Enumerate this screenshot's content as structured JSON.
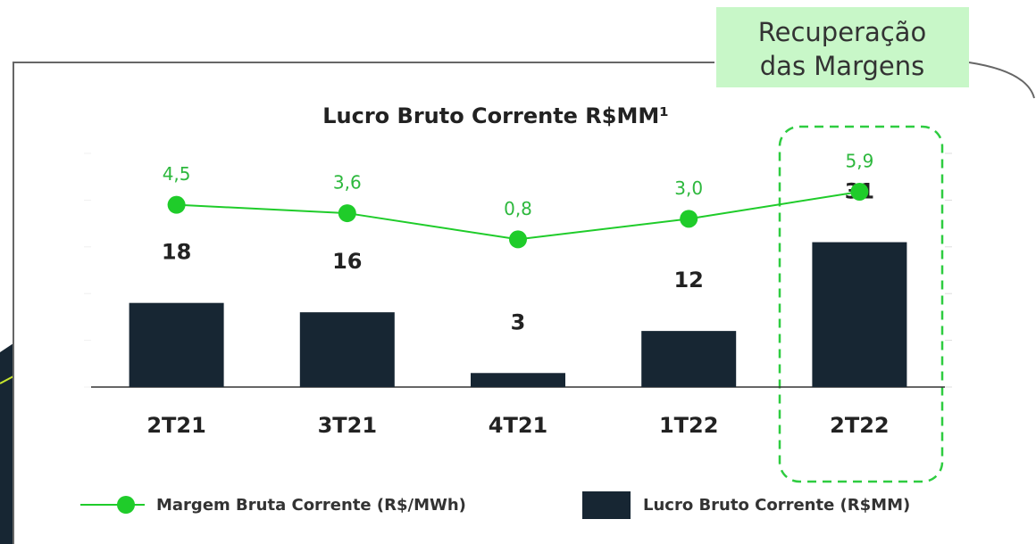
{
  "chart_data": {
    "type": "bar",
    "title": "Lucro Bruto Corrente R$MM¹",
    "annotation": [
      "Recuperação",
      "das Margens"
    ],
    "categories": [
      "2T21",
      "3T21",
      "4T21",
      "1T22",
      "2T22"
    ],
    "series": [
      {
        "name": "Lucro Bruto Corrente (R$MM)",
        "type": "bar",
        "color": "#172633",
        "values": [
          18,
          16,
          3,
          12,
          31
        ]
      },
      {
        "name": "Margem Bruta Corrente (R$/MWh)",
        "type": "line",
        "axis": "y2",
        "color": "#1fcc2a",
        "values": [
          4.5,
          3.6,
          0.8,
          3.0,
          5.9
        ],
        "value_labels": [
          "4,5",
          "3,6",
          "0,8",
          "3,0",
          "5,9"
        ]
      }
    ],
    "ylim": [
      0,
      50
    ],
    "yticks": [
      0,
      10,
      20,
      30,
      40,
      50
    ],
    "y2lim": [
      -15,
      10
    ]
  }
}
